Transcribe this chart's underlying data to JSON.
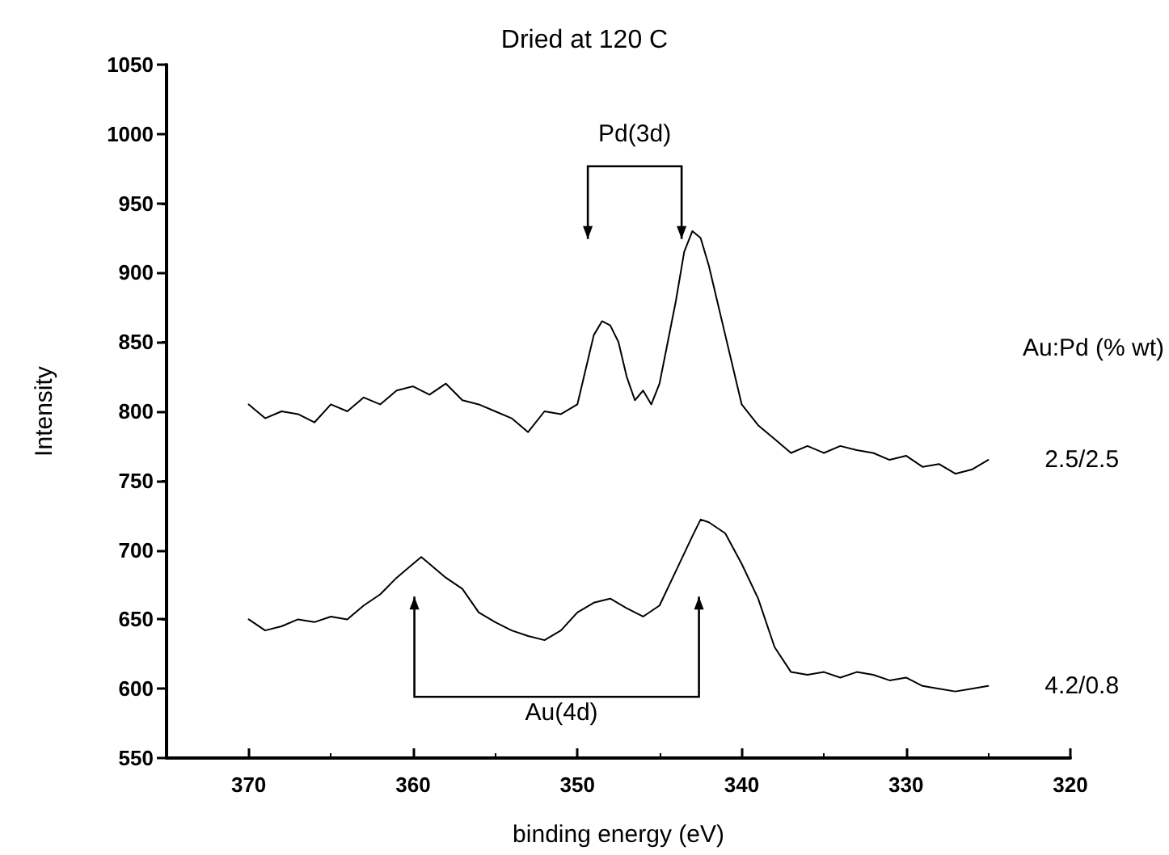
{
  "chart_data": {
    "type": "line",
    "title": "Dried at 120 C",
    "xlabel": "binding energy (eV)",
    "ylabel": "Intensity",
    "legend_title": "Au:Pd (% wt)",
    "xlim": [
      375,
      320
    ],
    "xticks": [
      370,
      360,
      350,
      340,
      330,
      320
    ],
    "ylim": [
      550,
      1050
    ],
    "yticks": [
      550,
      600,
      650,
      700,
      750,
      800,
      850,
      900,
      950,
      1000,
      1050
    ],
    "grid": false,
    "legend": false,
    "marker": "none",
    "line_style": "solid",
    "annotations": [
      "Pd(3d)",
      "Au(4d)"
    ],
    "series": [
      {
        "name": "2.5/2.5",
        "color": "#000000",
        "x": [
          370,
          369,
          368,
          367,
          366,
          365,
          364,
          363,
          362,
          361,
          360,
          359,
          358,
          357,
          356,
          355,
          354,
          353,
          352,
          351,
          350,
          349.5,
          349,
          348.5,
          348,
          347.5,
          347,
          346.5,
          346,
          345.5,
          345,
          344.5,
          344,
          343.5,
          343,
          342.5,
          342,
          341.5,
          341,
          340.5,
          340,
          339,
          338,
          337,
          336,
          335,
          334,
          333,
          332,
          331,
          330,
          329,
          328,
          327,
          326,
          325
        ],
        "values": [
          805,
          795,
          800,
          798,
          792,
          805,
          800,
          810,
          805,
          815,
          818,
          812,
          820,
          808,
          805,
          800,
          795,
          785,
          800,
          798,
          805,
          830,
          855,
          865,
          862,
          850,
          825,
          808,
          815,
          805,
          820,
          850,
          880,
          915,
          930,
          925,
          905,
          880,
          855,
          830,
          805,
          790,
          780,
          770,
          775,
          770,
          775,
          772,
          770,
          765,
          768,
          760,
          762,
          755,
          758,
          765
        ]
      },
      {
        "name": "4.2/0.8",
        "color": "#000000",
        "x": [
          370,
          369,
          368,
          367,
          366,
          365,
          364,
          363,
          362,
          361,
          360,
          359.5,
          359,
          358,
          357,
          356,
          355,
          354,
          353,
          352,
          351,
          350,
          349,
          348,
          347,
          346,
          345,
          344,
          343,
          342.5,
          342,
          341,
          340,
          339,
          338,
          337,
          336,
          335,
          334,
          333,
          332,
          331,
          330,
          329,
          328,
          327,
          326,
          325
        ],
        "values": [
          650,
          642,
          645,
          650,
          648,
          652,
          650,
          660,
          668,
          680,
          690,
          695,
          690,
          680,
          672,
          655,
          648,
          642,
          638,
          635,
          642,
          655,
          662,
          665,
          658,
          652,
          660,
          685,
          710,
          722,
          720,
          712,
          690,
          665,
          630,
          612,
          610,
          612,
          608,
          612,
          610,
          606,
          608,
          602,
          600,
          598,
          600,
          602
        ]
      }
    ]
  }
}
